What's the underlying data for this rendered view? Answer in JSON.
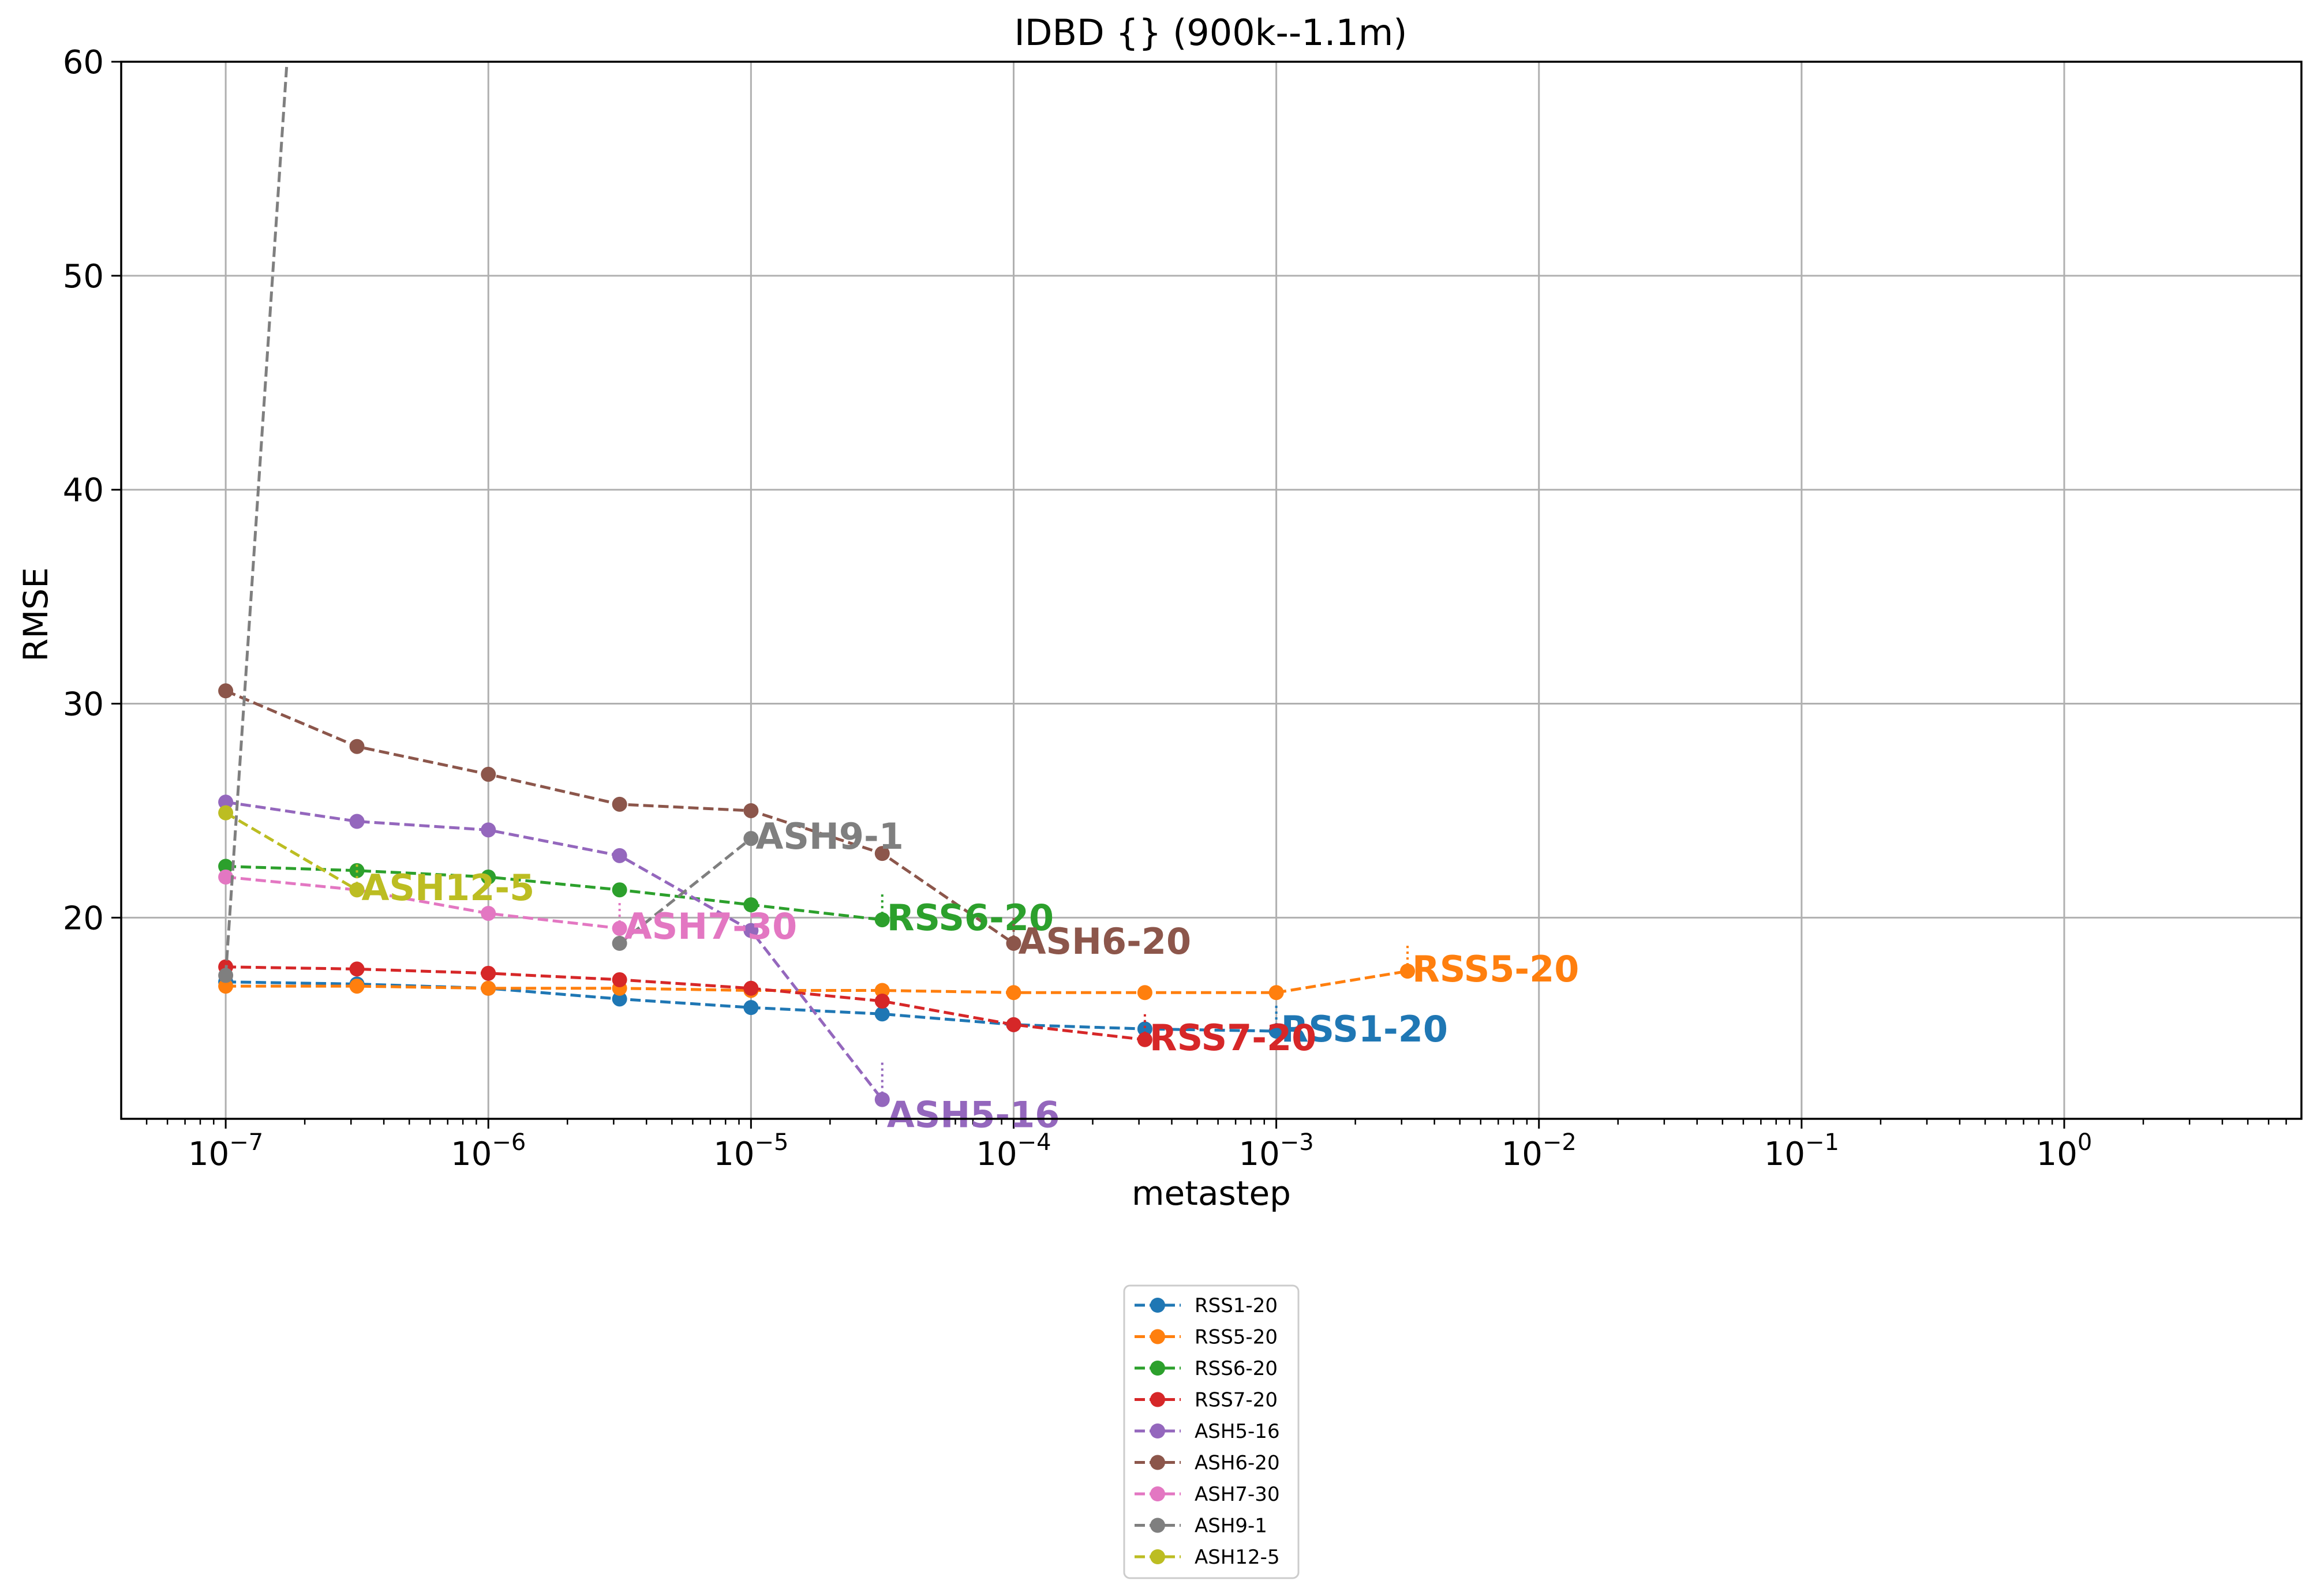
{
  "chart_data": {
    "type": "line",
    "title": "IDBD   {} (900k--1.1m)",
    "xlabel": "metastep",
    "ylabel": "RMSE",
    "xscale": "log",
    "xlim": [
      4e-08,
      8
    ],
    "ylim": [
      10.6,
      60
    ],
    "grid": true,
    "legend_position": "below",
    "x_ticks": [
      {
        "value": 1e-07,
        "label": "10",
        "exp": "−7"
      },
      {
        "value": 1e-06,
        "label": "10",
        "exp": "−6"
      },
      {
        "value": 1e-05,
        "label": "10",
        "exp": "−5"
      },
      {
        "value": 0.0001,
        "label": "10",
        "exp": "−4"
      },
      {
        "value": 0.001,
        "label": "10",
        "exp": "−3"
      },
      {
        "value": 0.01,
        "label": "10",
        "exp": "−2"
      },
      {
        "value": 0.1,
        "label": "10",
        "exp": "−1"
      },
      {
        "value": 1,
        "label": "10",
        "exp": "0"
      }
    ],
    "y_ticks": [
      {
        "value": 20,
        "label": "20"
      },
      {
        "value": 30,
        "label": "30"
      },
      {
        "value": 40,
        "label": "40"
      },
      {
        "value": 50,
        "label": "50"
      },
      {
        "value": 60,
        "label": "60"
      }
    ],
    "series": [
      {
        "name": "RSS1-20",
        "color": "#1f77b4",
        "points": [
          [
            1e-07,
            17.0
          ],
          [
            3.16e-07,
            16.9
          ],
          [
            1e-06,
            16.7
          ],
          [
            3.16e-06,
            16.2
          ],
          [
            1e-05,
            15.8
          ],
          [
            3.16e-05,
            15.5
          ],
          [
            0.0001,
            15.0
          ],
          [
            0.000316,
            14.8
          ],
          [
            0.001,
            14.7
          ]
        ],
        "annotation": {
          "text": "RSS1-20",
          "x": 0.001,
          "y": 14.7
        }
      },
      {
        "name": "RSS5-20",
        "color": "#ff7f0e",
        "points": [
          [
            1e-07,
            16.8
          ],
          [
            3.16e-07,
            16.8
          ],
          [
            1e-06,
            16.7
          ],
          [
            3.16e-06,
            16.7
          ],
          [
            1e-05,
            16.6
          ],
          [
            3.16e-05,
            16.6
          ],
          [
            0.0001,
            16.5
          ],
          [
            0.000316,
            16.5
          ],
          [
            0.001,
            16.5
          ],
          [
            0.00316,
            17.5
          ]
        ],
        "annotation": {
          "text": "RSS5-20",
          "x": 0.00316,
          "y": 17.5
        }
      },
      {
        "name": "RSS6-20",
        "color": "#2ca02c",
        "points": [
          [
            1e-07,
            22.4
          ],
          [
            3.16e-07,
            22.2
          ],
          [
            1e-06,
            21.9
          ],
          [
            3.16e-06,
            21.3
          ],
          [
            1e-05,
            20.6
          ],
          [
            3.16e-05,
            19.9
          ]
        ],
        "annotation": {
          "text": "RSS6-20",
          "x": 3.16e-05,
          "y": 19.9
        }
      },
      {
        "name": "RSS7-20",
        "color": "#d62728",
        "points": [
          [
            1e-07,
            17.7
          ],
          [
            3.16e-07,
            17.6
          ],
          [
            1e-06,
            17.4
          ],
          [
            3.16e-06,
            17.1
          ],
          [
            1e-05,
            16.7
          ],
          [
            3.16e-05,
            16.1
          ],
          [
            0.0001,
            15.0
          ],
          [
            0.000316,
            14.3
          ]
        ],
        "annotation": {
          "text": "RSS7-20",
          "x": 0.000316,
          "y": 14.3
        }
      },
      {
        "name": "ASH5-16",
        "color": "#9467bd",
        "points": [
          [
            1e-07,
            25.4
          ],
          [
            3.16e-07,
            24.5
          ],
          [
            1e-06,
            24.1
          ],
          [
            3.16e-06,
            22.9
          ],
          [
            1e-05,
            19.4
          ],
          [
            3.16e-05,
            11.5
          ]
        ],
        "annotation": {
          "text": "ASH5-16",
          "x": 3.16e-05,
          "y": 11.5
        }
      },
      {
        "name": "ASH6-20",
        "color": "#8c564b",
        "points": [
          [
            1e-07,
            30.6
          ],
          [
            3.16e-07,
            28.0
          ],
          [
            1e-06,
            26.7
          ],
          [
            3.16e-06,
            25.3
          ],
          [
            1e-05,
            25.0
          ],
          [
            3.16e-05,
            23.0
          ],
          [
            0.0001,
            18.8
          ]
        ],
        "annotation": {
          "text": "ASH6-20",
          "x": 0.0001,
          "y": 18.8
        }
      },
      {
        "name": "ASH7-30",
        "color": "#e377c2",
        "points": [
          [
            1e-07,
            21.9
          ],
          [
            3.16e-07,
            21.3
          ],
          [
            1e-06,
            20.2
          ],
          [
            3.16e-06,
            19.5
          ]
        ],
        "annotation": {
          "text": "ASH7-30",
          "x": 3.16e-06,
          "y": 19.5
        }
      },
      {
        "name": "ASH9-1",
        "color": "#7f7f7f",
        "points": [
          [
            1e-07,
            17.3
          ],
          [
            2.2e-07,
            80.0
          ],
          [
            3.16e-06,
            18.8
          ],
          [
            1e-05,
            23.7
          ]
        ],
        "segments": [
          [
            0,
            1
          ],
          [
            2,
            3
          ]
        ],
        "markers": [
          0,
          2,
          3
        ],
        "annotation": {
          "text": "ASH9-1",
          "x": 1e-05,
          "y": 23.7
        }
      },
      {
        "name": "ASH12-5",
        "color": "#bcbd22",
        "points": [
          [
            1e-07,
            24.9
          ],
          [
            3.16e-07,
            21.3
          ]
        ],
        "annotation": {
          "text": "ASH12-5",
          "x": 3.16e-07,
          "y": 21.3
        }
      }
    ]
  }
}
